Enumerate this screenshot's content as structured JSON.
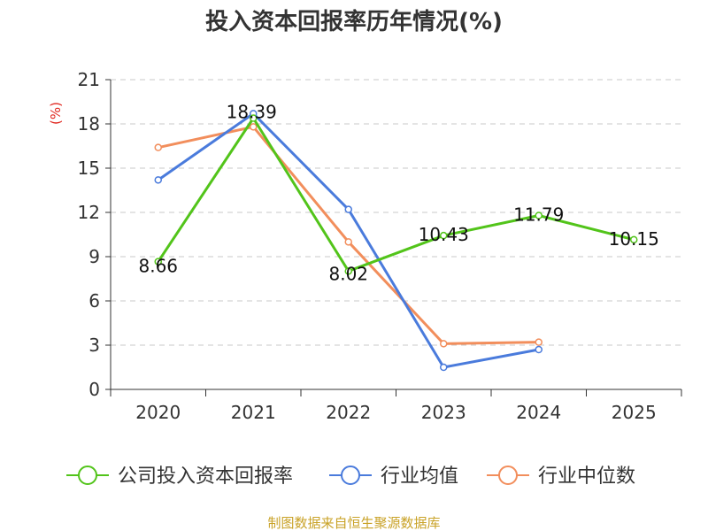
{
  "chart_data": {
    "type": "line",
    "title": "投入资本回报率历年情况(%)",
    "y_unit": "(%)",
    "categories": [
      "2020",
      "2021",
      "2022",
      "2023",
      "2024",
      "2025"
    ],
    "ylim": [
      0,
      21
    ],
    "yticks": [
      0,
      3,
      6,
      9,
      12,
      15,
      18,
      21
    ],
    "grid": true,
    "legend_position": "bottom",
    "series": [
      {
        "name": "公司投入资本回报率",
        "color": "#52c41a",
        "values": [
          8.66,
          18.39,
          8.02,
          10.43,
          11.79,
          10.15
        ],
        "labels": [
          "8.66",
          "18.39",
          "8.02",
          "10.43",
          "11.79",
          "10.15"
        ]
      },
      {
        "name": "行业均值",
        "color": "#4a7bdc",
        "values": [
          14.2,
          18.7,
          12.2,
          1.5,
          2.7,
          null
        ]
      },
      {
        "name": "行业中位数",
        "color": "#f28e5c",
        "values": [
          16.4,
          17.8,
          10.0,
          3.1,
          3.2,
          null
        ]
      }
    ],
    "source": "制图数据来自恒生聚源数据库"
  }
}
